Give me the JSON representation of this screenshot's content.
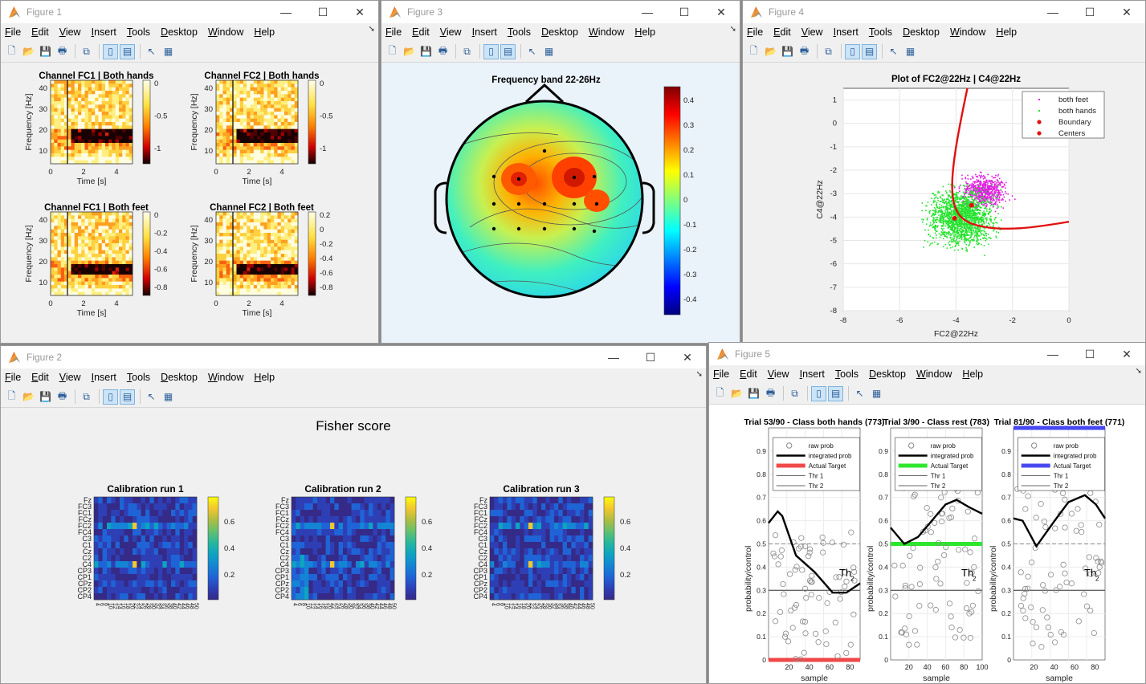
{
  "menu": [
    "File",
    "Edit",
    "View",
    "Insert",
    "Tools",
    "Desktop",
    "Window",
    "Help"
  ],
  "controls": {
    "minimize": "—",
    "maximize": "☐",
    "close": "✕"
  },
  "fig1": {
    "title": "Figure 1",
    "plots": [
      {
        "title": "Channel FC1 | Both hands",
        "ylabel": "Frequency [Hz]",
        "xlabel": "Time [s]",
        "cbar": [
          "0",
          "-0.5",
          "-1"
        ]
      },
      {
        "title": "Channel FC2 | Both hands",
        "ylabel": "Frequency [Hz]",
        "xlabel": "Time [s]",
        "cbar": [
          "0",
          "-0.5",
          "-1"
        ]
      },
      {
        "title": "Channel FC1 | Both feet",
        "ylabel": "Frequency [Hz]",
        "xlabel": "Time [s]",
        "cbar": [
          "0",
          "-0.2",
          "-0.4",
          "-0.6",
          "-0.8"
        ]
      },
      {
        "title": "Channel FC2 | Both feet",
        "ylabel": "Frequency [Hz]",
        "xlabel": "Time [s]",
        "cbar": [
          "0.2",
          "0",
          "-0.2",
          "-0.4",
          "-0.6",
          "-0.8"
        ]
      }
    ],
    "yticks": [
      "40",
      "30",
      "20",
      "10"
    ],
    "xticks": [
      "0",
      "2",
      "4"
    ]
  },
  "fig3": {
    "title": "Figure 3",
    "plot_title": "Frequency band 22-26Hz",
    "cbar": [
      "0.4",
      "0.3",
      "0.2",
      "0.1",
      "0",
      "-0.1",
      "-0.2",
      "-0.3",
      "-0.4"
    ]
  },
  "fig4": {
    "title": "Figure 4",
    "plot_title": "Plot of FC2@22Hz | C4@22Hz",
    "xlabel": "FC2@22Hz",
    "ylabel": "C4@22Hz",
    "xticks": [
      "-8",
      "-6",
      "-4",
      "-2",
      "0"
    ],
    "yticks": [
      "1",
      "0",
      "-1",
      "-2",
      "-3",
      "-4",
      "-5",
      "-6",
      "-7",
      "-8"
    ],
    "legend": [
      "both feet",
      "both hands",
      "Boundary",
      "Centers"
    ],
    "colors": {
      "feet": "#e01ee0",
      "hands": "#22e22a",
      "boundary": "#e01010"
    }
  },
  "fig2": {
    "title": "Figure 2",
    "suptitle": "Fisher score",
    "runs": [
      "Calibration run 1",
      "Calibration run 2",
      "Calibration run 3"
    ],
    "channels": [
      "Fz",
      "FC3",
      "FC1",
      "FCz",
      "FC2",
      "FC4",
      "C3",
      "C1",
      "Cz",
      "C2",
      "C4",
      "CP3",
      "CP1",
      "CPz",
      "CP2",
      "CP4"
    ],
    "cbar": [
      "0.6",
      "0.4",
      "0.2"
    ]
  },
  "fig5": {
    "title": "Figure 5",
    "trials": [
      {
        "title": "Trial 53/90 - Class both hands (773)",
        "color": "#f04848",
        "xticks": [
          "20",
          "40",
          "60",
          "80"
        ]
      },
      {
        "title": "Trial 3/90 - Class rest (783)",
        "color": "#2ee62e",
        "xticks": [
          "20",
          "40",
          "60",
          "80",
          "100"
        ]
      },
      {
        "title": "Trial 81/90 - Class both feet (771)",
        "color": "#4848f0",
        "xticks": [
          "20",
          "40",
          "60",
          "80"
        ]
      }
    ],
    "legend": [
      "raw prob",
      "integrated prob",
      "Actual Target",
      "Thr 1",
      "Thr 2"
    ],
    "ylabel": "probability/control",
    "xlabel": "sample",
    "yticks": [
      "0.9",
      "0.8",
      "0.7",
      "0.6",
      "0.5",
      "0.4",
      "0.3",
      "0.2",
      "0.1",
      "0"
    ],
    "thr_label": "Th",
    "thr_sub": "2"
  }
}
